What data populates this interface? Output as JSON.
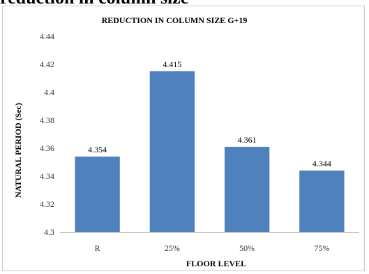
{
  "page_heading_partial": "reduction in column size",
  "chart_data": {
    "type": "bar",
    "title": "REDUCTION IN  COLUMN SIZE G+19",
    "xlabel": "FLOOR LEVEL",
    "ylabel": "NATURAL PERIOD (Sec)",
    "categories": [
      "R",
      "25%",
      "50%",
      "75%"
    ],
    "values": [
      4.354,
      4.415,
      4.361,
      4.344
    ],
    "data_labels": [
      "4.354",
      "4.415",
      "4.361",
      "4.344"
    ],
    "ylim": [
      4.3,
      4.44
    ],
    "yticks": [
      "4.3",
      "4.32",
      "4.34",
      "4.36",
      "4.38",
      "4.4",
      "4.42",
      "4.44"
    ],
    "grid": false,
    "legend": "none",
    "bar_color": "#4f81bd"
  }
}
